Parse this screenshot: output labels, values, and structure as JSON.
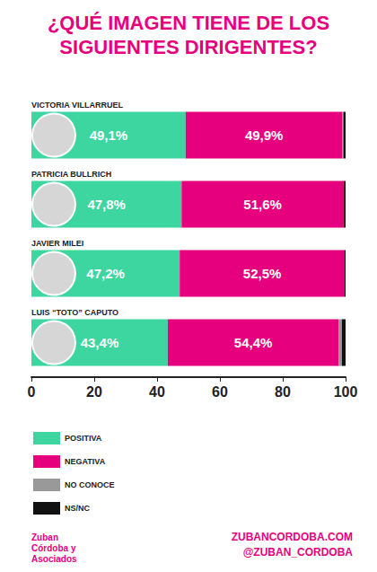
{
  "chart_data": {
    "type": "bar",
    "title": "¿QUÉ IMAGEN TIENE DE LOS SIGUIENTES DIRIGENTES?",
    "orientation": "horizontal",
    "stacked": true,
    "data_labels": true,
    "grid": false,
    "legend": "bottom",
    "categories": [
      "VICTORIA VILLARRUEL",
      "PATRICIA BULLRICH",
      "JAVIER MILEI",
      "LUIS “TOTO” CAPUTO"
    ],
    "series": [
      {
        "name": "POSITIVA",
        "color": "#3dd6a1",
        "values": [
          49.1,
          47.8,
          47.2,
          43.4
        ],
        "value_labels": [
          "49,1%",
          "47,8%",
          "47,2%",
          "43,4%"
        ]
      },
      {
        "name": "NEGATIVA",
        "color": "#e6007e",
        "values": [
          49.9,
          51.6,
          52.5,
          54.4
        ],
        "value_labels": [
          "49,9%",
          "51,6%",
          "52,5%",
          "54,4%"
        ]
      },
      {
        "name": "NO CONOCE",
        "color": "#999999",
        "values": [
          0.3,
          0,
          0,
          1.0
        ]
      },
      {
        "name": "NS/NC",
        "color": "#111111",
        "values": [
          0.7,
          0.6,
          0.3,
          1.2
        ]
      }
    ],
    "xlim": [
      0,
      100
    ],
    "xticks": [
      0,
      20,
      40,
      60,
      80,
      100
    ],
    "annotations": [
      "Zuban Córdoba y Asociados",
      "ZUBANCORDOBA.COM",
      "@ZUBAN_CORDOBA"
    ]
  }
}
